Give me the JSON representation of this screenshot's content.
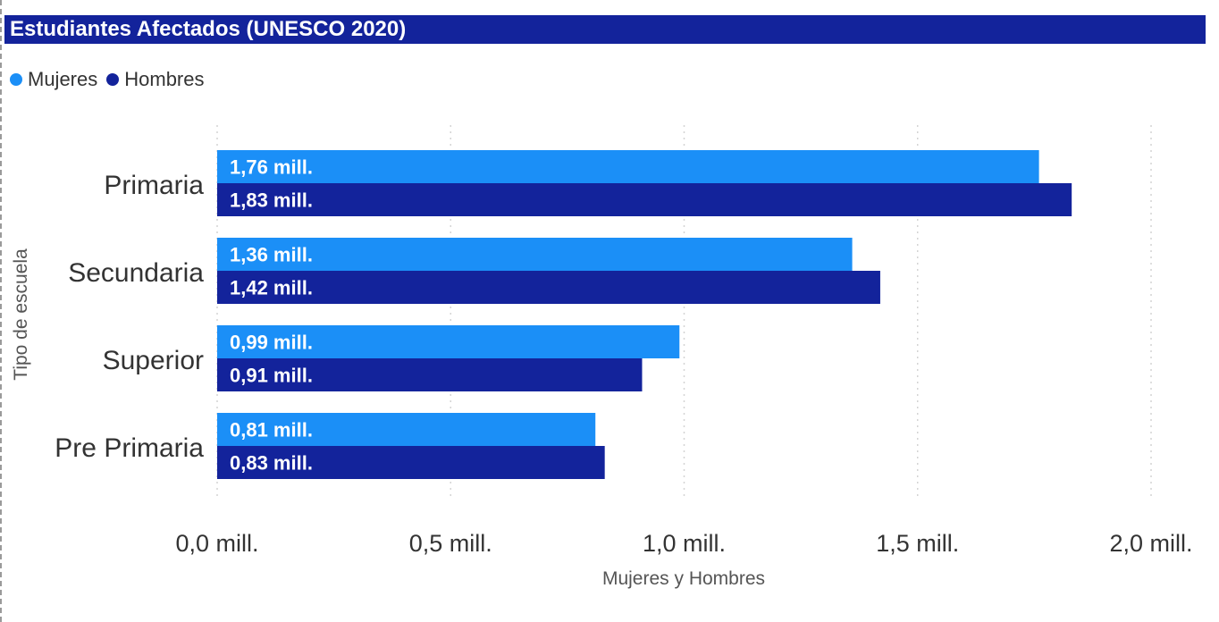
{
  "colors": {
    "title_bg": "#13239b",
    "mujeres": "#1b8ff7",
    "hombres": "#13239b"
  },
  "header": {
    "title": "Estudiantes Afectados (UNESCO 2020)"
  },
  "chart_data": {
    "type": "bar",
    "orientation": "horizontal",
    "title": "Estudiantes Afectados (UNESCO 2020)",
    "xlabel": "Mujeres y Hombres",
    "ylabel": "Tipo de escuela",
    "categories": [
      "Primaria",
      "Secundaria",
      "Superior",
      "Pre Primaria"
    ],
    "series": [
      {
        "name": "Mujeres",
        "color": "#1b8ff7",
        "values": [
          1.76,
          1.36,
          0.99,
          0.81
        ],
        "labels": [
          "1,76 mill.",
          "1,36 mill.",
          "0,99 mill.",
          "0,81 mill."
        ]
      },
      {
        "name": "Hombres",
        "color": "#13239b",
        "values": [
          1.83,
          1.42,
          0.91,
          0.83
        ],
        "labels": [
          "1,83 mill.",
          "1,42 mill.",
          "0,91 mill.",
          "0,83 mill."
        ]
      }
    ],
    "xticks": [
      0,
      0.5,
      1.0,
      1.5,
      2.0
    ],
    "xtick_labels": [
      "0,0 mill.",
      "0,5 mill.",
      "1,0 mill.",
      "1,5 mill.",
      "2,0 mill."
    ],
    "xlim": [
      0,
      2.0
    ],
    "unit": "millones",
    "grid": true,
    "legend_position": "top-left"
  }
}
